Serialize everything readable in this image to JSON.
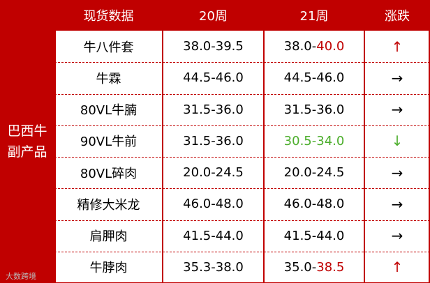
{
  "table": {
    "side_label": [
      "巴西牛",
      "副产品"
    ],
    "header": [
      "现货数据",
      "20周",
      "21周",
      "涨跌"
    ],
    "rows": [
      {
        "name": "牛八件套",
        "w20": "38.0-39.5",
        "w21": [
          {
            "text": "38.0-"
          },
          {
            "text": "40.0",
            "color": "#c00000"
          }
        ],
        "trend": {
          "text": "↑",
          "color": "#c00000"
        }
      },
      {
        "name": "牛霖",
        "w20": "44.5-46.0",
        "w21": [
          {
            "text": "44.5-46.0"
          }
        ],
        "trend": {
          "text": "→",
          "color": "#000000"
        }
      },
      {
        "name": "80VL牛腩",
        "w20": "31.5-36.0",
        "w21": [
          {
            "text": "31.5-36.0"
          }
        ],
        "trend": {
          "text": "→",
          "color": "#000000"
        }
      },
      {
        "name": "90VL牛前",
        "w20": "31.5-36.0",
        "w21": [
          {
            "text": "30.5-34.0",
            "color": "#4cae2c"
          }
        ],
        "trend": {
          "text": "↓",
          "color": "#4cae2c"
        }
      },
      {
        "name": "80VL碎肉",
        "w20": "20.0-24.5",
        "w21": [
          {
            "text": "20.0-24.5"
          }
        ],
        "trend": {
          "text": "→",
          "color": "#000000"
        }
      },
      {
        "name": "精修大米龙",
        "w20": "46.0-48.0",
        "w21": [
          {
            "text": "46.0-48.0"
          }
        ],
        "trend": {
          "text": "→",
          "color": "#000000"
        }
      },
      {
        "name": "肩胛肉",
        "w20": "41.5-44.0",
        "w21": [
          {
            "text": "41.5-44.0"
          }
        ],
        "trend": {
          "text": "→",
          "color": "#000000"
        }
      },
      {
        "name": "牛脖肉",
        "w20": "35.3-38.0",
        "w21": [
          {
            "text": "35.0-"
          },
          {
            "text": "38.5",
            "color": "#c00000"
          }
        ],
        "trend": {
          "text": "↑",
          "color": "#c00000"
        }
      }
    ],
    "watermark": "大数跨境"
  }
}
